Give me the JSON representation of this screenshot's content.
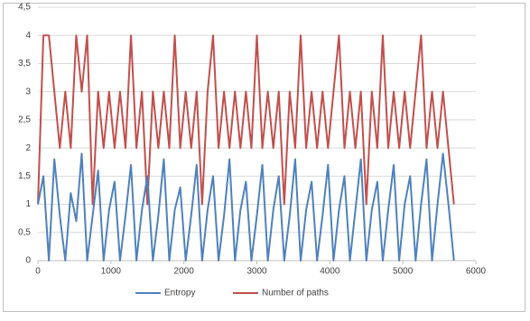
{
  "chart_data": {
    "type": "line",
    "x": [
      0,
      75,
      150,
      225,
      300,
      375,
      450,
      525,
      600,
      675,
      750,
      825,
      900,
      975,
      1050,
      1125,
      1200,
      1275,
      1350,
      1425,
      1500,
      1575,
      1650,
      1725,
      1800,
      1875,
      1950,
      2025,
      2100,
      2175,
      2250,
      2325,
      2400,
      2475,
      2550,
      2625,
      2700,
      2775,
      2850,
      2925,
      3000,
      3075,
      3150,
      3225,
      3300,
      3375,
      3450,
      3525,
      3600,
      3675,
      3750,
      3825,
      3900,
      3975,
      4050,
      4125,
      4200,
      4275,
      4350,
      4425,
      4500,
      4575,
      4650,
      4725,
      4800,
      4875,
      4950,
      5025,
      5100,
      5175,
      5250,
      5325,
      5400,
      5475,
      5550,
      5625,
      5700
    ],
    "series": [
      {
        "name": "Entropy",
        "color": "#4f81bd",
        "values": [
          1,
          1.5,
          0,
          1.8,
          0.8,
          0,
          1.2,
          0.7,
          1.9,
          0,
          0.8,
          1.6,
          0,
          0.9,
          1.4,
          0,
          0.8,
          1.7,
          0,
          0.9,
          1.5,
          0,
          0.8,
          1.8,
          0,
          0.9,
          1.3,
          0,
          0.8,
          1.7,
          0,
          0.9,
          1.5,
          0,
          0.8,
          1.8,
          0,
          0.9,
          1.4,
          0,
          0.8,
          1.7,
          0,
          0.9,
          1.5,
          0,
          0.8,
          1.8,
          0,
          0.9,
          1.4,
          0,
          0.8,
          1.7,
          0,
          0.9,
          1.5,
          0,
          0.9,
          1.8,
          0,
          0.9,
          1.4,
          0,
          0.9,
          1.7,
          0,
          1,
          1.5,
          0,
          1,
          1.8,
          0,
          1,
          1.9,
          1,
          0
        ]
      },
      {
        "name": "Number of paths",
        "color": "#c0504d",
        "values": [
          1,
          4,
          4,
          3,
          2,
          3,
          2,
          4,
          3,
          4,
          1,
          3,
          2,
          3,
          2,
          3,
          2,
          4,
          2,
          3,
          1,
          3,
          2,
          3,
          2,
          4,
          2,
          3,
          2,
          3,
          1,
          3,
          4,
          2,
          3,
          2,
          3,
          2,
          3,
          2,
          4,
          2,
          3,
          2,
          3,
          1,
          3,
          2,
          4,
          2,
          3,
          2,
          3,
          2,
          3,
          4,
          2,
          3,
          2,
          3,
          1,
          3,
          2,
          4,
          2,
          3,
          2,
          3,
          2,
          3,
          4,
          2,
          3,
          2,
          3,
          2,
          1
        ]
      }
    ],
    "xlim": [
      0,
      6000
    ],
    "xticks": [
      0,
      1000,
      2000,
      3000,
      4000,
      5000,
      6000
    ],
    "ylim": [
      0,
      4.5
    ],
    "yticks": [
      0,
      {
        "value": 0.5,
        "label": "0,5"
      },
      1,
      {
        "value": 1.5,
        "label": "1,5"
      },
      2,
      {
        "value": 2.5,
        "label": "2,5"
      },
      3,
      {
        "value": 3.5,
        "label": "3,5"
      },
      4,
      {
        "value": 4.5,
        "label": "4,5"
      }
    ],
    "grid": true,
    "legend": "bottom"
  }
}
